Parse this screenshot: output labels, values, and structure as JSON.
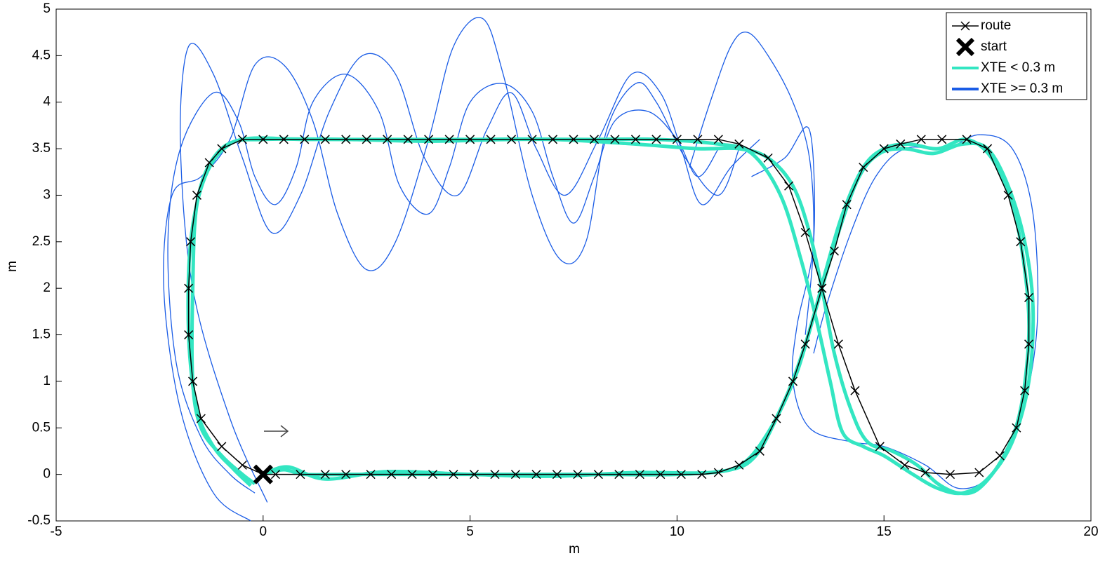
{
  "chart_data": {
    "type": "line",
    "xlabel": "m",
    "ylabel": "m",
    "xlim": [
      -5,
      20
    ],
    "xticks": [
      -5,
      0,
      5,
      10,
      15,
      20
    ],
    "ylim": [
      -0.5,
      5
    ],
    "yticks": [
      -0.5,
      0,
      0.5,
      1,
      1.5,
      2,
      2.5,
      3,
      3.5,
      4,
      4.5,
      5
    ],
    "legend": "upper-right",
    "series": [
      {
        "name": "route",
        "color": "#000000",
        "marker": "x",
        "x": [
          0,
          0.3,
          0.9,
          1.5,
          2.0,
          2.6,
          3.1,
          3.6,
          4.1,
          4.6,
          5.1,
          5.6,
          6.1,
          6.6,
          7.1,
          7.6,
          8.1,
          8.6,
          9.1,
          9.6,
          10.1,
          10.6,
          11.0,
          11.5,
          12.0,
          12.4,
          12.8,
          13.1,
          13.5,
          13.8,
          14.1,
          14.5,
          15.0,
          15.4,
          15.9,
          16.4,
          17.0,
          17.5,
          18.0,
          18.3,
          18.5,
          18.5,
          18.4,
          18.2,
          17.8,
          17.3,
          16.6,
          16.0,
          15.5,
          14.9,
          14.3,
          13.9,
          13.5,
          13.1,
          12.7,
          12.2,
          11.5,
          11.0,
          10.5,
          10.0,
          9.5,
          9.0,
          8.5,
          8.0,
          7.5,
          7.0,
          6.5,
          6.0,
          5.5,
          5.0,
          4.5,
          4.0,
          3.5,
          3.0,
          2.5,
          2.0,
          1.5,
          1.0,
          0.5,
          0,
          -0.5,
          -1.0,
          -1.3,
          -1.6,
          -1.75,
          -1.8,
          -1.8,
          -1.7,
          -1.5,
          -1.0,
          -0.5,
          0
        ],
        "y": [
          0,
          0,
          0,
          0,
          0,
          0,
          0,
          0,
          0,
          0,
          0,
          0,
          0,
          0,
          0,
          0,
          0,
          0,
          0,
          0,
          0,
          0,
          0.02,
          0.1,
          0.25,
          0.6,
          1.0,
          1.4,
          2.0,
          2.4,
          2.9,
          3.3,
          3.5,
          3.55,
          3.6,
          3.6,
          3.6,
          3.5,
          3.0,
          2.5,
          1.9,
          1.4,
          0.9,
          0.5,
          0.2,
          0.02,
          0,
          0.02,
          0.1,
          0.3,
          0.9,
          1.4,
          2.0,
          2.6,
          3.1,
          3.4,
          3.55,
          3.6,
          3.6,
          3.6,
          3.6,
          3.6,
          3.6,
          3.6,
          3.6,
          3.6,
          3.6,
          3.6,
          3.6,
          3.6,
          3.6,
          3.6,
          3.6,
          3.6,
          3.6,
          3.6,
          3.6,
          3.6,
          3.6,
          3.6,
          3.6,
          3.5,
          3.35,
          3.0,
          2.5,
          2.0,
          1.5,
          1.0,
          0.6,
          0.3,
          0.1,
          0
        ]
      },
      {
        "name": "start",
        "color": "#000000",
        "marker": "X",
        "x": [
          0
        ],
        "y": [
          0
        ]
      },
      {
        "name": "XTE >= 0.3 m",
        "color": "#1a5ce6",
        "paths": [
          {
            "x": [
              11,
              10.5,
              10,
              9.3,
              8.5,
              8,
              7.5,
              7,
              6.5,
              5.8,
              5,
              4.5,
              4,
              3.3,
              2.8,
              2,
              1.2,
              0.8,
              0.3,
              -0.2,
              -0.6,
              -1.2,
              -2,
              -2.3,
              -2.1,
              -1.5,
              -0.8,
              -0.2
            ],
            "y": [
              3.5,
              3.2,
              3.6,
              3.9,
              3.8,
              3.2,
              2.7,
              3.2,
              3.9,
              4.2,
              4.0,
              3.3,
              2.8,
              3.1,
              3.9,
              4.3,
              4.0,
              3.3,
              2.9,
              3.2,
              3.8,
              4.1,
              3.5,
              2.5,
              1.2,
              0.4,
              0.0,
              -0.2
            ]
          },
          {
            "x": [
              11.5,
              11,
              10.2,
              9.5,
              9,
              8.3,
              7.8,
              7.2,
              6.5,
              5.8,
              5.3,
              4.6,
              4,
              3.2,
              2.5,
              1.8,
              1.2,
              0.5,
              -0.2,
              -0.8,
              -1.5,
              -2.2,
              -2.4,
              -2.0,
              -1.2,
              -0.3
            ],
            "y": [
              3.5,
              3.0,
              3.4,
              4.0,
              4.2,
              3.7,
              2.5,
              2.3,
              3.0,
              4.3,
              4.9,
              4.6,
              3.6,
              2.5,
              2.2,
              2.8,
              3.8,
              4.4,
              4.4,
              3.6,
              3.2,
              3.0,
              2.0,
              0.7,
              -0.2,
              -0.5
            ]
          },
          {
            "x": [
              12,
              11.3,
              10.6,
              10.1,
              9.6,
              8.9,
              8.1,
              7.3,
              6.6,
              6.0,
              5.4,
              4.7,
              3.9,
              3.2,
              2.4,
              1.6,
              0.9,
              0.2,
              -0.5,
              -1.2,
              -1.8,
              -2.0,
              -1.7,
              -0.8,
              0.1
            ],
            "y": [
              3.6,
              3.3,
              2.9,
              3.5,
              4.1,
              4.3,
              3.6,
              3.0,
              3.5,
              4.1,
              3.7,
              3.0,
              3.4,
              4.3,
              4.5,
              3.9,
              3.0,
              2.6,
              3.4,
              4.3,
              4.6,
              3.6,
              2.0,
              0.6,
              -0.3
            ]
          },
          {
            "x": [
              11.8,
              12.6,
              13.2,
              13.3,
              12.9,
              12.8,
              13.2,
              14.2,
              15,
              16,
              16.8,
              17.6,
              18.3,
              18.7,
              18.6,
              18.1,
              17.3,
              16.5,
              15.5,
              14.8,
              14.2,
              13.6,
              13.3
            ],
            "y": [
              3.2,
              3.4,
              3.7,
              2.5,
              1.6,
              1.0,
              0.5,
              0.35,
              0.3,
              0.1,
              -0.15,
              0.0,
              0.6,
              1.6,
              2.8,
              3.5,
              3.65,
              3.5,
              3.5,
              3.2,
              2.6,
              1.8,
              1.3
            ]
          },
          {
            "x": [
              10.3,
              10.8,
              11.3,
              11.7,
              12.2,
              12.8,
              13.2,
              13.3,
              13.1
            ],
            "y": [
              3.3,
              4.0,
              4.6,
              4.75,
              4.5,
              4.0,
              3.4,
              2.5,
              1.5
            ]
          }
        ]
      },
      {
        "name": "XTE < 0.3 m",
        "color": "#33e6c2",
        "paths": [
          {
            "x": [
              0,
              0.5,
              1,
              2,
              4,
              6,
              8,
              10,
              11.3,
              11.9,
              12.4,
              12.9,
              13.3,
              13.6,
              14.0,
              14.5,
              15.0,
              15.6,
              16.3,
              17.0,
              17.6,
              18.1,
              18.4,
              18.5,
              18.3,
              17.9,
              17.3,
              16.8,
              16.3,
              15.8,
              15.2,
              14.6,
              14.2,
              13.8,
              13.5,
              13.2,
              12.8,
              12.2,
              11.5,
              10.5,
              9,
              7,
              5,
              3,
              1,
              -0.5,
              -1.2,
              -1.6,
              -1.7,
              -1.7,
              -1.5,
              -1.0,
              -0.5,
              -0.2
            ],
            "y": [
              0,
              0.05,
              0,
              0,
              0,
              0,
              0,
              0,
              0.05,
              0.2,
              0.6,
              1.1,
              1.7,
              2.2,
              2.8,
              3.3,
              3.5,
              3.55,
              3.5,
              3.6,
              3.4,
              2.9,
              2.2,
              1.5,
              0.7,
              0.2,
              -0.15,
              -0.2,
              -0.1,
              0.1,
              0.25,
              0.35,
              0.7,
              1.3,
              2.0,
              2.6,
              3.1,
              3.4,
              3.5,
              3.5,
              3.55,
              3.6,
              3.6,
              3.6,
              3.6,
              3.6,
              3.4,
              2.9,
              2.0,
              1.0,
              0.5,
              0.2,
              0.0,
              -0.1
            ]
          },
          {
            "x": [
              0,
              0.6,
              1.5,
              3,
              5,
              7,
              9,
              10.8,
              11.6,
              12.2,
              12.7,
              13.1,
              13.5,
              13.9,
              14.4,
              14.9,
              15.5,
              16.2,
              16.9,
              17.5,
              18.0,
              18.4,
              18.6,
              18.5,
              18.1,
              17.5,
              16.9,
              16.3,
              15.7,
              15.0,
              14.5,
              14.0,
              13.7,
              13.4,
              13.0,
              12.5,
              11.8,
              11,
              9.5,
              8,
              6,
              4,
              2,
              0,
              -0.8,
              -1.4,
              -1.75,
              -1.8,
              -1.6,
              -1.2,
              -0.7,
              -0.3
            ],
            "y": [
              0,
              0.08,
              -0.05,
              0.03,
              0,
              -0.02,
              0.02,
              0.02,
              0.12,
              0.45,
              0.9,
              1.4,
              2.0,
              2.6,
              3.2,
              3.45,
              3.5,
              3.45,
              3.55,
              3.5,
              3.1,
              2.5,
              1.8,
              1.0,
              0.35,
              -0.05,
              -0.2,
              -0.15,
              0.0,
              0.2,
              0.3,
              0.45,
              1.0,
              1.6,
              2.3,
              3.0,
              3.45,
              3.55,
              3.6,
              3.6,
              3.6,
              3.58,
              3.6,
              3.6,
              3.55,
              3.2,
              2.5,
              1.5,
              0.7,
              0.3,
              0.05,
              -0.12
            ]
          }
        ]
      }
    ]
  }
}
